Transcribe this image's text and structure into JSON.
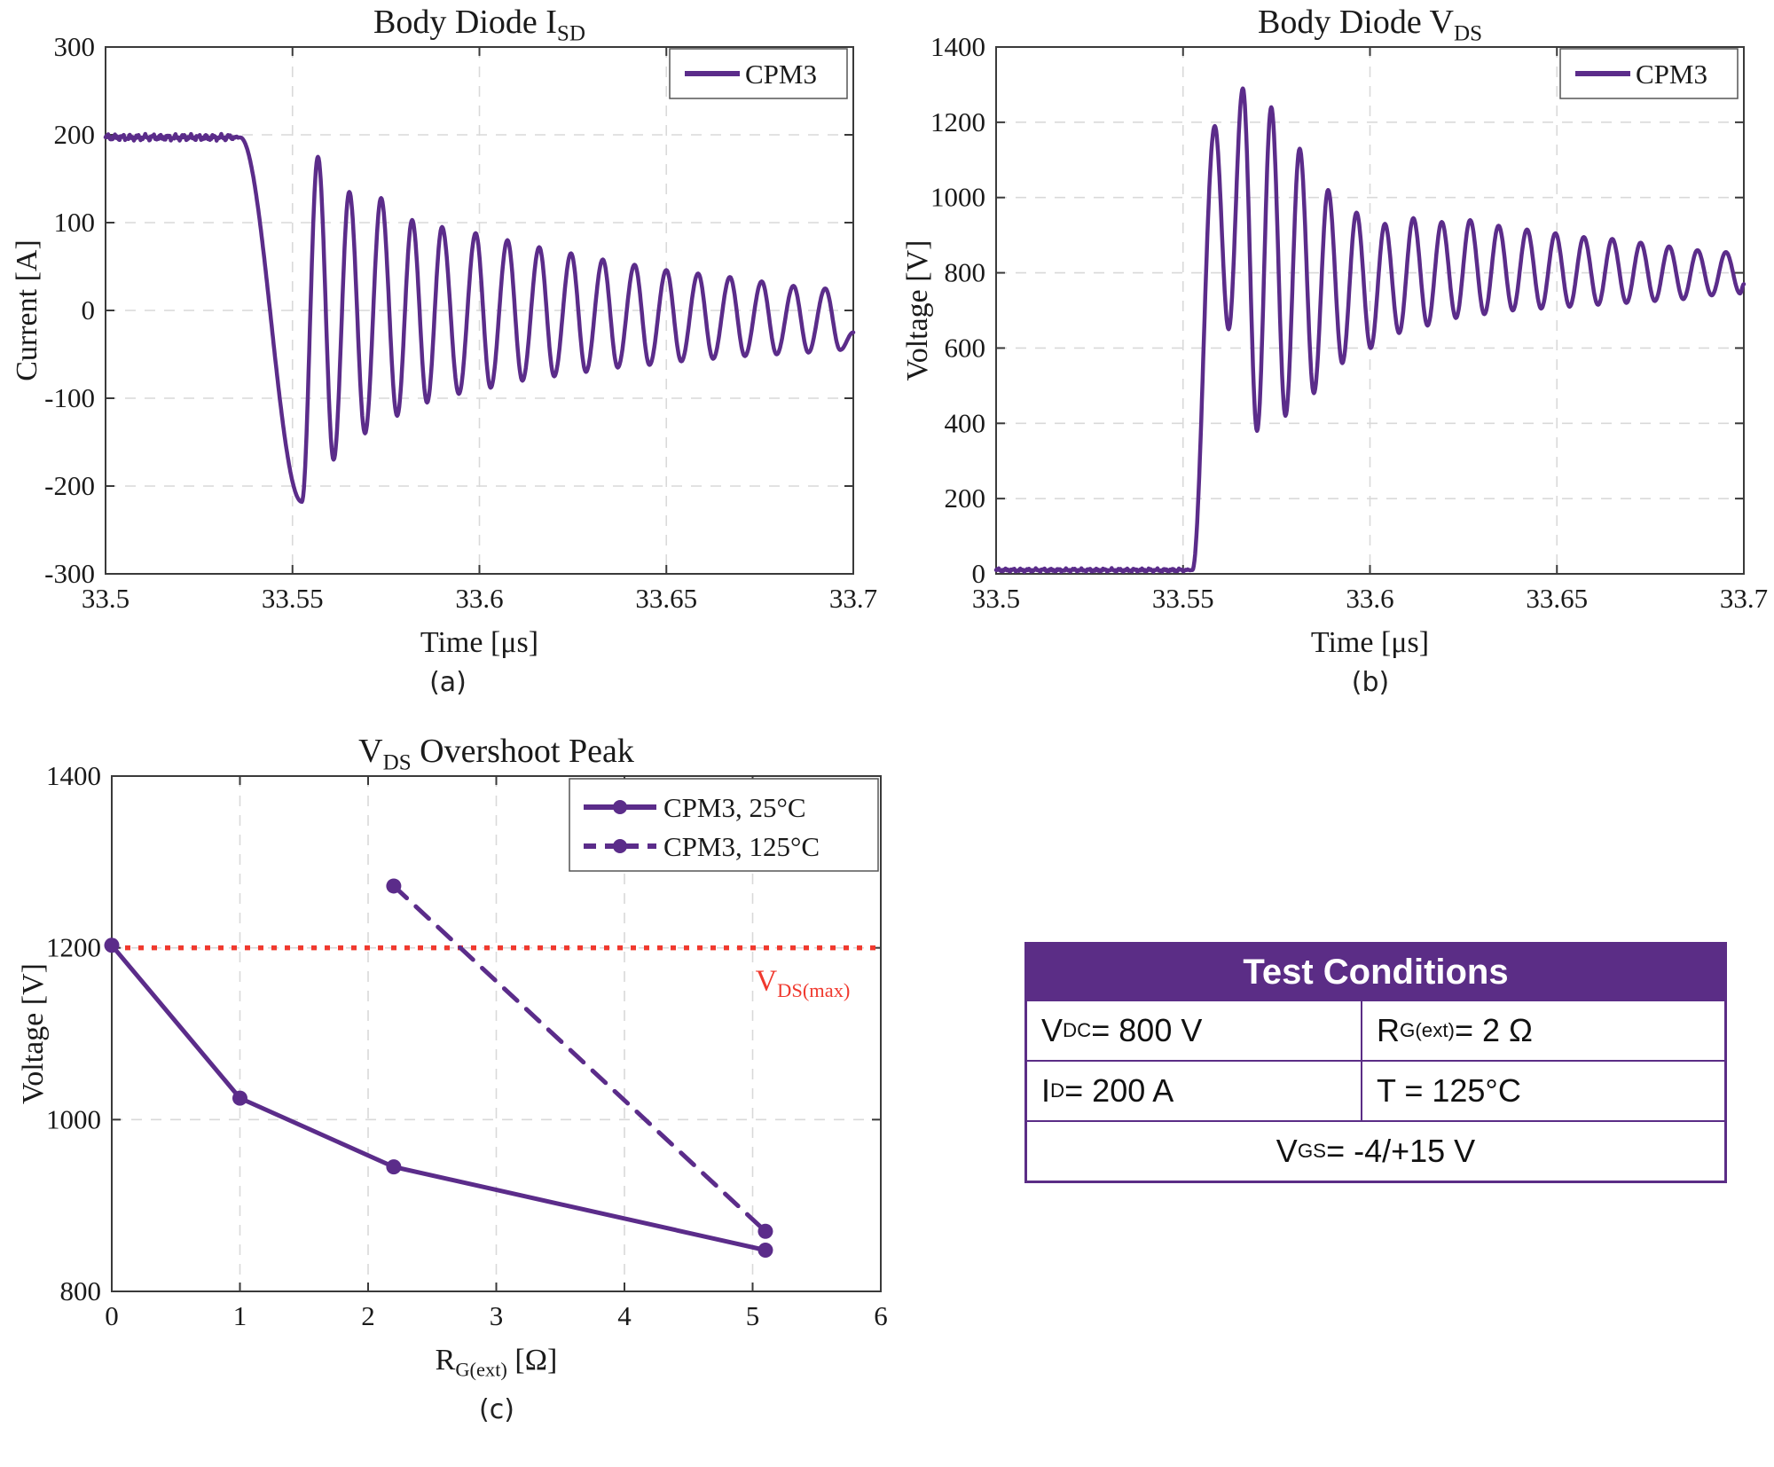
{
  "colors": {
    "purple": "#5b2c8a",
    "red": "#f0392e",
    "grid": "#d9d9d9",
    "axis": "#3a3a3a",
    "text": "#1a1a1a",
    "table_border": "#5b2d86",
    "table_header_bg": "#5b2d86",
    "table_header_text": "#ffffff"
  },
  "captions": {
    "a": "(a)",
    "b": "(b)",
    "c": "(c)"
  },
  "chart_data": [
    {
      "id": "chart-a",
      "type": "line",
      "title": "Body Diode I_{SD}",
      "xlabel": "Time [μs]",
      "ylabel": "Current [A]",
      "xlim": [
        33.5,
        33.7
      ],
      "ylim": [
        -300,
        300
      ],
      "xticks": [
        33.5,
        33.55,
        33.6,
        33.65,
        33.7
      ],
      "yticks": [
        -300,
        -200,
        -100,
        0,
        100,
        200,
        300
      ],
      "legend": [
        "CPM3"
      ],
      "grid": true,
      "flat": {
        "until": 33.536,
        "value": 197,
        "noise": 4
      },
      "extremes": [
        [
          33.5,
          197
        ],
        [
          33.536,
          197
        ],
        [
          33.5525,
          -218
        ],
        [
          33.5568,
          175
        ],
        [
          33.561,
          -170
        ],
        [
          33.5652,
          135
        ],
        [
          33.5694,
          -140
        ],
        [
          33.5737,
          128
        ],
        [
          33.578,
          -120
        ],
        [
          33.582,
          103
        ],
        [
          33.586,
          -105
        ],
        [
          33.59,
          95
        ],
        [
          33.5945,
          -95
        ],
        [
          33.599,
          88
        ],
        [
          33.603,
          -88
        ],
        [
          33.6075,
          80
        ],
        [
          33.6115,
          -80
        ],
        [
          33.616,
          72
        ],
        [
          33.62,
          -75
        ],
        [
          33.6245,
          65
        ],
        [
          33.6285,
          -70
        ],
        [
          33.633,
          58
        ],
        [
          33.637,
          -65
        ],
        [
          33.6415,
          52
        ],
        [
          33.6455,
          -62
        ],
        [
          33.65,
          46
        ],
        [
          33.654,
          -58
        ],
        [
          33.6585,
          42
        ],
        [
          33.6625,
          -55
        ],
        [
          33.667,
          38
        ],
        [
          33.671,
          -52
        ],
        [
          33.6755,
          33
        ],
        [
          33.6795,
          -50
        ],
        [
          33.684,
          28
        ],
        [
          33.688,
          -48
        ],
        [
          33.6925,
          25
        ],
        [
          33.6965,
          -45
        ],
        [
          33.7,
          -25
        ]
      ]
    },
    {
      "id": "chart-b",
      "type": "line",
      "title": "Body Diode V_{DS}",
      "xlabel": "Time [μs]",
      "ylabel": "Voltage [V]",
      "xlim": [
        33.5,
        33.7
      ],
      "ylim": [
        0,
        1400
      ],
      "xticks": [
        33.5,
        33.55,
        33.6,
        33.65,
        33.7
      ],
      "yticks": [
        0,
        200,
        400,
        600,
        800,
        1000,
        1200,
        1400
      ],
      "legend": [
        "CPM3"
      ],
      "grid": true,
      "flat": {
        "until": 33.5525,
        "value": 10,
        "noise": 5
      },
      "extremes": [
        [
          33.5,
          10
        ],
        [
          33.5525,
          10
        ],
        [
          33.5585,
          1190
        ],
        [
          33.5622,
          650
        ],
        [
          33.566,
          1290
        ],
        [
          33.5698,
          380
        ],
        [
          33.5736,
          1240
        ],
        [
          33.5774,
          420
        ],
        [
          33.5812,
          1130
        ],
        [
          33.585,
          480
        ],
        [
          33.5888,
          1020
        ],
        [
          33.5926,
          560
        ],
        [
          33.5964,
          960
        ],
        [
          33.6002,
          600
        ],
        [
          33.604,
          930
        ],
        [
          33.6078,
          640
        ],
        [
          33.6116,
          945
        ],
        [
          33.6154,
          660
        ],
        [
          33.6192,
          935
        ],
        [
          33.623,
          680
        ],
        [
          33.6268,
          940
        ],
        [
          33.6306,
          690
        ],
        [
          33.6344,
          925
        ],
        [
          33.6382,
          700
        ],
        [
          33.642,
          915
        ],
        [
          33.6458,
          705
        ],
        [
          33.6496,
          905
        ],
        [
          33.6534,
          710
        ],
        [
          33.6572,
          895
        ],
        [
          33.661,
          715
        ],
        [
          33.6648,
          890
        ],
        [
          33.6686,
          720
        ],
        [
          33.6724,
          880
        ],
        [
          33.6762,
          725
        ],
        [
          33.68,
          870
        ],
        [
          33.6838,
          730
        ],
        [
          33.6876,
          860
        ],
        [
          33.6914,
          740
        ],
        [
          33.6952,
          855
        ],
        [
          33.699,
          745
        ],
        [
          33.7,
          770
        ]
      ]
    },
    {
      "id": "chart-c",
      "type": "scatter-line",
      "title": "V_{DS} Overshoot Peak",
      "xlabel": "R_{G(ext)} [Ω]",
      "ylabel": "Voltage [V]",
      "xlim": [
        0,
        6
      ],
      "ylim": [
        800,
        1400
      ],
      "xticks": [
        0,
        1,
        2,
        3,
        4,
        5,
        6
      ],
      "yticks": [
        800,
        1000,
        1200,
        1400
      ],
      "grid": true,
      "series": [
        {
          "name": "CPM3, 25°C",
          "style": "solid",
          "points": [
            [
              0,
              1203
            ],
            [
              1,
              1025
            ],
            [
              2.2,
              945
            ],
            [
              5.1,
              848
            ]
          ]
        },
        {
          "name": "CPM3, 125°C",
          "style": "dashed",
          "points": [
            [
              2.2,
              1272
            ],
            [
              5.1,
              870
            ]
          ]
        }
      ],
      "limit_line": {
        "y": 1200,
        "label": "V_{DS(max)}"
      }
    }
  ],
  "table": {
    "title": "Test Conditions",
    "rows": [
      [
        "V_{DC} = 800 V",
        "R_{G(ext)} = 2 Ω"
      ],
      [
        "I_{D} = 200 A",
        "T = 125°C"
      ]
    ],
    "footer": "V_{GS} = -4/+15 V"
  }
}
